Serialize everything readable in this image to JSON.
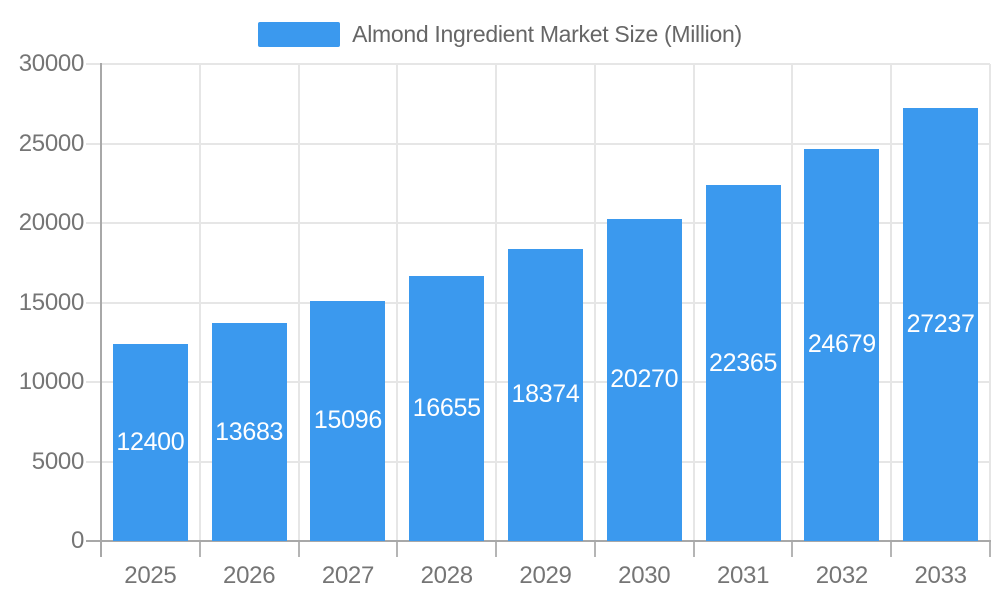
{
  "legend": {
    "label": "Almond Ingredient Market Size (Million)",
    "swatch_color": "#3b99ee",
    "text_color": "#666666"
  },
  "chart_data": {
    "type": "bar",
    "title": "Almond Ingredient Market Size (Million)",
    "categories": [
      "2025",
      "2026",
      "2027",
      "2028",
      "2029",
      "2030",
      "2031",
      "2032",
      "2033"
    ],
    "values": [
      12400,
      13683,
      15096,
      16655,
      18374,
      20270,
      22365,
      24679,
      27237
    ],
    "series_name": "Almond Ingredient Market Size (Million)",
    "xlabel": "",
    "ylabel": "",
    "ylim": [
      0,
      30000
    ],
    "yticks": [
      0,
      5000,
      10000,
      15000,
      20000,
      25000,
      30000
    ],
    "grid": true,
    "legend_position": "top-center",
    "value_labels": "inside-center"
  },
  "colors": {
    "bar": "#3b99ee",
    "grid_line": "#e6e6e6",
    "axis_line": "#a8a8a8",
    "tick_mark": "#b5b5b5",
    "axis_label": "#757575",
    "value_label": "#ffffff",
    "background": "#ffffff"
  }
}
